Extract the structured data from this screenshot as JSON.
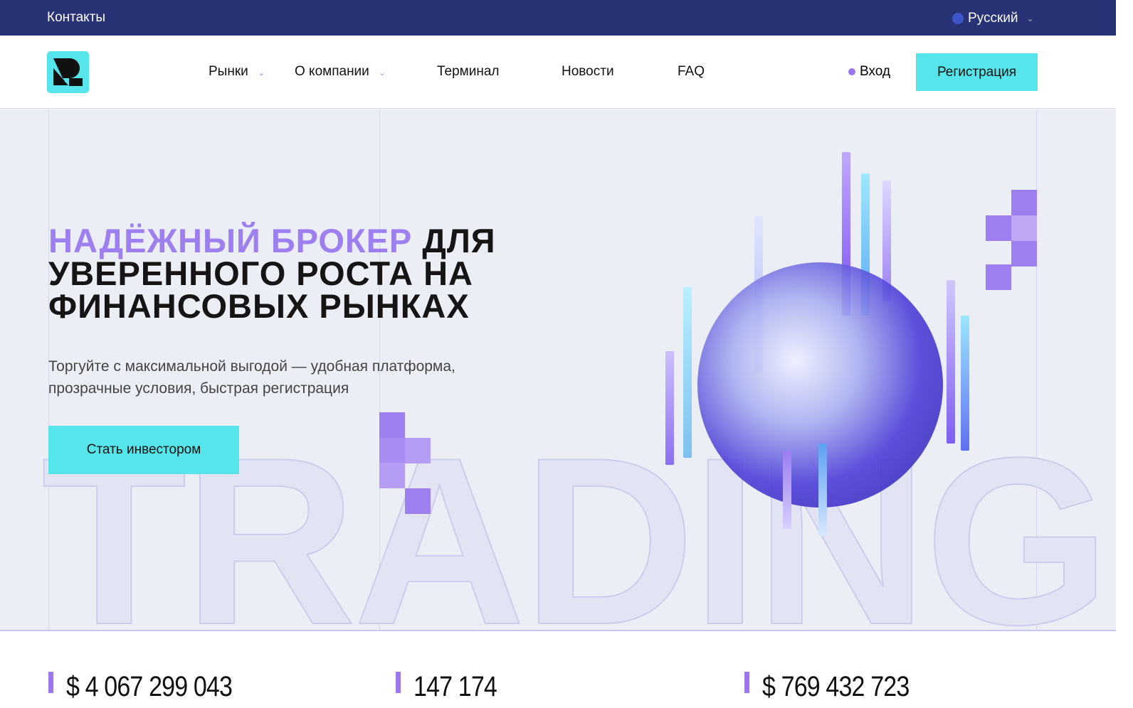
{
  "topbar": {
    "contacts": "Контакты",
    "language": "Русский"
  },
  "header": {
    "nav": [
      {
        "label": "Рынки",
        "dropdown": true
      },
      {
        "label": "О компании",
        "dropdown": true
      },
      {
        "label": "Терминал"
      },
      {
        "label": "Новости"
      },
      {
        "label": "FAQ"
      }
    ],
    "login": "Вход",
    "register": "Регистрация"
  },
  "hero": {
    "title_accent": "НАДЁЖНЫЙ БРОКЕР",
    "title_rest": "ДЛЯ УВЕРЕННОГО РОСТА НА ФИНАНСОВЫХ РЫНКАХ",
    "subtitle": "Торгуйте с максимальной выгодой — удобная платформа, прозрачные условия, быстрая регистрация",
    "cta": "Стать инвестором",
    "background_word": "TRADING"
  },
  "stats": [
    "$ 4 067 299 043",
    "147 174",
    "$ 769 432 723"
  ],
  "colors": {
    "topbar": "#283275",
    "accent_cyan": "#56e5ea",
    "accent_purple": "#9d7ff0",
    "hero_bg": "#eceef6"
  }
}
